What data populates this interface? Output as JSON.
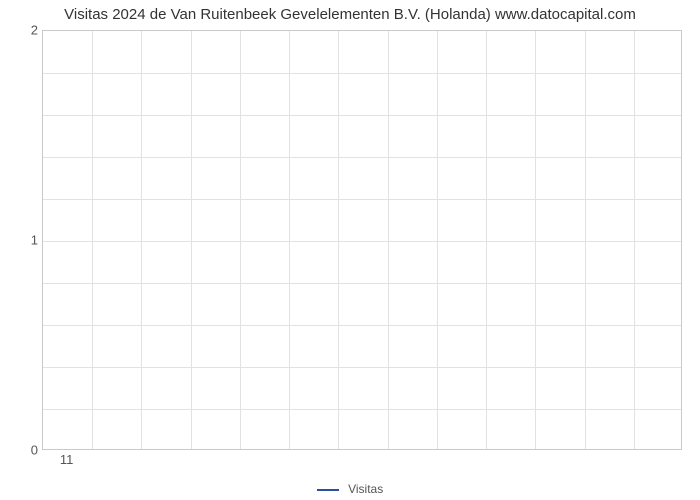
{
  "chart": {
    "type": "line",
    "title": "Visitas 2024 de Van Ruitenbeek Gevelelementen B.V. (Holanda) www.datocapital.com",
    "title_fontsize": 15,
    "title_color": "#333333",
    "background_color": "#ffffff",
    "plot_border_color": "#c9c9c9",
    "grid_color": "#e2e2e2",
    "axis_label_color": "#555555",
    "axis_label_fontsize": 13,
    "ylim": [
      0,
      2
    ],
    "y_major_ticks": [
      0,
      1,
      2
    ],
    "y_minor_count_between": 4,
    "xlim": [
      11,
      11
    ],
    "x_major_ticks": [
      11
    ],
    "x_grid_count": 13,
    "series": [
      {
        "name": "Visitas",
        "color": "#2b4ea0",
        "line_width": 2,
        "data_x": [
          11
        ],
        "data_y": [
          null
        ]
      }
    ],
    "legend": {
      "position": "bottom-center",
      "items": [
        {
          "label": "Visitas",
          "color": "#2b4ea0"
        }
      ]
    }
  }
}
